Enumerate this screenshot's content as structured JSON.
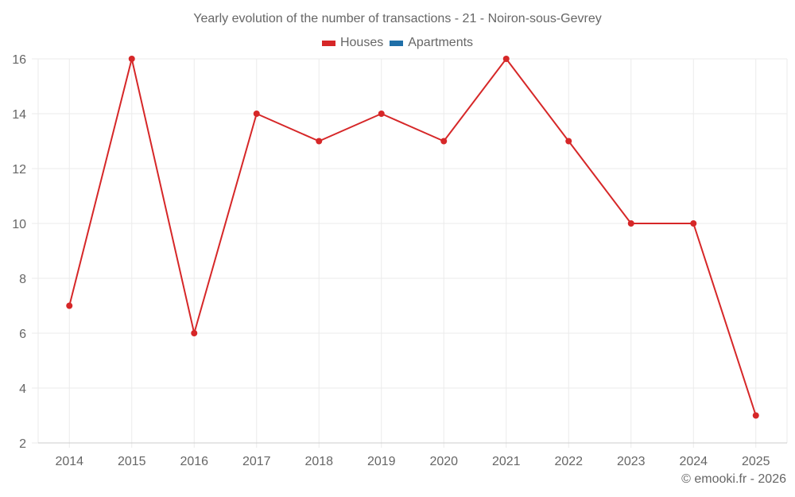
{
  "chart_data": {
    "type": "line",
    "title": "Yearly evolution of the number of transactions - 21 - Noiron-sous-Gevrey",
    "xlabel": "",
    "ylabel": "",
    "categories": [
      "2014",
      "2015",
      "2016",
      "2017",
      "2018",
      "2019",
      "2020",
      "2021",
      "2022",
      "2023",
      "2024",
      "2025"
    ],
    "series": [
      {
        "name": "Houses",
        "color": "#d62728",
        "values": [
          7,
          16,
          6,
          14,
          13,
          14,
          13,
          16,
          13,
          10,
          10,
          3
        ]
      },
      {
        "name": "Apartments",
        "color": "#1f6fa8",
        "values": []
      }
    ],
    "ylim": [
      2,
      16
    ],
    "yticks": [
      2,
      4,
      6,
      8,
      10,
      12,
      14,
      16
    ],
    "grid": true,
    "legend_position": "top"
  },
  "legend": {
    "items": [
      {
        "label": "Houses",
        "color": "#d62728"
      },
      {
        "label": "Apartments",
        "color": "#1f6fa8"
      }
    ]
  },
  "footer": {
    "credit": "© emooki.fr - 2026"
  }
}
